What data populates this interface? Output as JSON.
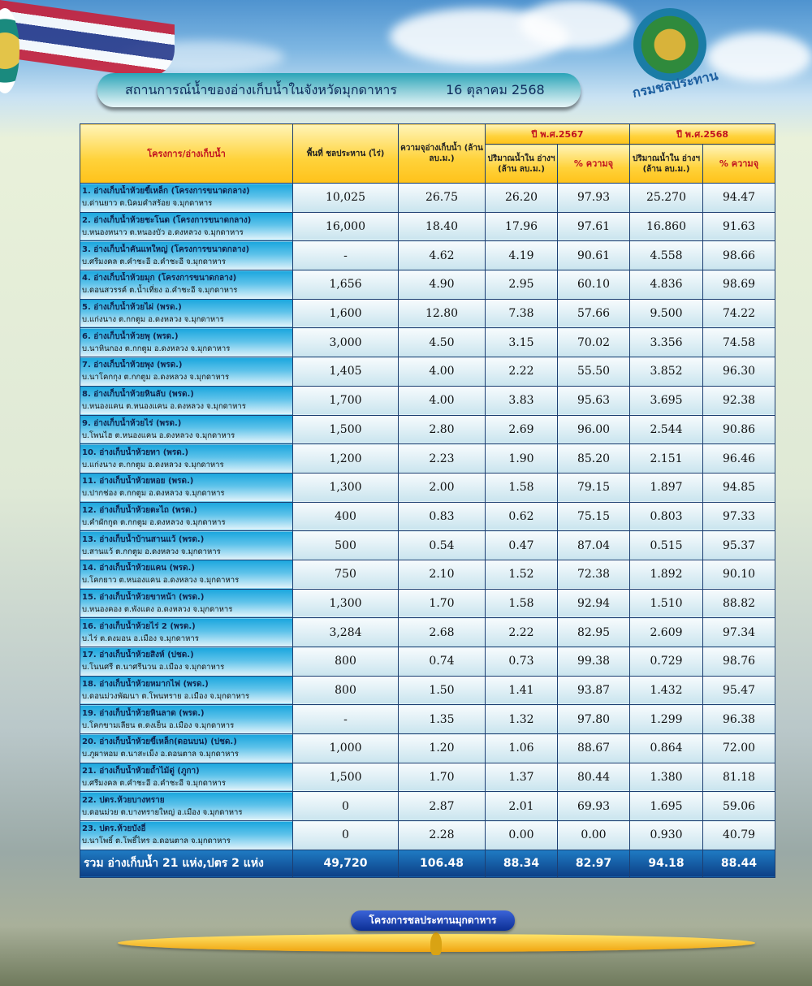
{
  "header": {
    "title": "สถานการณ์น้ำของอ่างเก็บน้ำในจังหวัดมุกดาหาร",
    "date": "16 ตุลาคม 2568",
    "logo_text": "กรมชลประทาน"
  },
  "table": {
    "col_name": "โครงการ/อ่างเก็บน้ำ",
    "col_area": "พื้นที่ ชลประหาน (ไร่)",
    "col_capacity": "ความจุอ่างเก็บน้ำ (ล้าน ลบ.ม.)",
    "year1": "ปี พ.ศ.2567",
    "year2": "ปี พ.ศ.2568",
    "col_volume": "ปริมาณน้ำใน อ่างฯ (ล้าน ลบ.ม.)",
    "col_percent": "% ความจุ",
    "rows": [
      {
        "name": "1. อ่างเก็บน้ำห้วยขี้เหล็ก (โครงการขนาดกลาง)",
        "loc": "บ.ด่านยาว ต.นิคมคำสร้อย จ.มุกดาหาร",
        "area": "10,025",
        "cap": "26.75",
        "v67": "26.20",
        "p67": "97.93",
        "v68": "25.270",
        "p68": "94.47"
      },
      {
        "name": "2. อ่างเก็บน้ำห้วยชะโนด (โครงการขนาดกลาง)",
        "loc": "บ.หนองหนาว ต.หนองบัว อ.ดงหลวง จ.มุกดาหาร",
        "area": "16,000",
        "cap": "18.40",
        "v67": "17.96",
        "p67": "97.61",
        "v68": "16.860",
        "p68": "91.63"
      },
      {
        "name": "3. อ่างเก็บน้ำคันแทใหญ่ (โครงการขนาดกลาง)",
        "loc": "บ.ศรีมงคล ต.คำชะอี อ.คำชะอี จ.มุกดาหาร",
        "area": "-",
        "cap": "4.62",
        "v67": "4.19",
        "p67": "90.61",
        "v68": "4.558",
        "p68": "98.66"
      },
      {
        "name": "4. อ่างเก็บน้ำห้วยมุก (โครงการขนาดกลาง)",
        "loc": "บ.ดอนสวรรค์ ต.น้ำเที่ยง อ.คำชะอี จ.มุกดาหาร",
        "area": "1,656",
        "cap": "4.90",
        "v67": "2.95",
        "p67": "60.10",
        "v68": "4.836",
        "p68": "98.69"
      },
      {
        "name": "5. อ่างเก็บน้ำห้วยไผ่ (พรด.)",
        "loc": "บ.แก่งนาง ต.กกตูม อ.ดงหลวง จ.มุกดาหาร",
        "area": "1,600",
        "cap": "12.80",
        "v67": "7.38",
        "p67": "57.66",
        "v68": "9.500",
        "p68": "74.22"
      },
      {
        "name": "6. อ่างเก็บน้ำห้วยพุ (พรด.)",
        "loc": "บ.นาหินกอง ต.กกตูม อ.ดงหลวง จ.มุกดาหาร",
        "area": "3,000",
        "cap": "4.50",
        "v67": "3.15",
        "p67": "70.02",
        "v68": "3.356",
        "p68": "74.58"
      },
      {
        "name": "7. อ่างเก็บน้ำห้วยพุง (พรด.)",
        "loc": "บ.นาโคกกุง ต.กกตูม อ.ดงหลวง จ.มุกดาหาร",
        "area": "1,405",
        "cap": "4.00",
        "v67": "2.22",
        "p67": "55.50",
        "v68": "3.852",
        "p68": "96.30"
      },
      {
        "name": "8. อ่างเก็บน้ำห้วยหินลับ (พรด.)",
        "loc": "บ.หนองแคน ต.หนองแคน อ.ดงหลวง จ.มุกดาหาร",
        "area": "1,700",
        "cap": "4.00",
        "v67": "3.83",
        "p67": "95.63",
        "v68": "3.695",
        "p68": "92.38"
      },
      {
        "name": "9. อ่างเก็บน้ำห้วยไร่ (พรด.)",
        "loc": "บ.โพนไฮ ต.หนองแคน อ.ดงหลวง จ.มุกดาหาร",
        "area": "1,500",
        "cap": "2.80",
        "v67": "2.69",
        "p67": "96.00",
        "v68": "2.544",
        "p68": "90.86"
      },
      {
        "name": "10. อ่างเก็บน้ำห้วยทา (พรด.)",
        "loc": "บ.แก่งนาง ต.กกตูม อ.ดงหลวง จ.มุกดาหาร",
        "area": "1,200",
        "cap": "2.23",
        "v67": "1.90",
        "p67": "85.20",
        "v68": "2.151",
        "p68": "96.46"
      },
      {
        "name": "11. อ่างเก็บน้ำห้วยหอย (พรด.)",
        "loc": "บ.ปากช่อง ต.กกตูม อ.ดงหลวง จ.มุกดาหาร",
        "area": "1,300",
        "cap": "2.00",
        "v67": "1.58",
        "p67": "79.15",
        "v68": "1.897",
        "p68": "94.85"
      },
      {
        "name": "12. อ่างเก็บน้ำห้วยตะไถ (พรด.)",
        "loc": "บ.คำผักกูด ต.กกตูม อ.ดงหลวง จ.มุกดาหาร",
        "area": "400",
        "cap": "0.83",
        "v67": "0.62",
        "p67": "75.15",
        "v68": "0.803",
        "p68": "97.33"
      },
      {
        "name": "13. อ่างเก็บน้ำบ้านสานแว้ (พรด.)",
        "loc": "บ.สานแว้ ต.กกตูม อ.ดงหลวง จ.มุกดาหาร",
        "area": "500",
        "cap": "0.54",
        "v67": "0.47",
        "p67": "87.04",
        "v68": "0.515",
        "p68": "95.37"
      },
      {
        "name": "14. อ่างเก็บน้ำห้วยแคน (พรด.)",
        "loc": "บ.โคกยาว ต.หนองแคน อ.ดงหลวง จ.มุกดาหาร",
        "area": "750",
        "cap": "2.10",
        "v67": "1.52",
        "p67": "72.38",
        "v68": "1.892",
        "p68": "90.10"
      },
      {
        "name": "15. อ่างเก็บน้ำห้วยขาหน้า (พรด.)",
        "loc": "บ.หนองคอง ต.พังแดง อ.ดงหลวง จ.มุกดาหาร",
        "area": "1,300",
        "cap": "1.70",
        "v67": "1.58",
        "p67": "92.94",
        "v68": "1.510",
        "p68": "88.82"
      },
      {
        "name": "16. อ่างเก็บน้ำห้วยไร่ 2 (พรด.)",
        "loc": "บ.ไร่ ต.ดงมอน อ.เมือง จ.มุกดาหาร",
        "area": "3,284",
        "cap": "2.68",
        "v67": "2.22",
        "p67": "82.95",
        "v68": "2.609",
        "p68": "97.34"
      },
      {
        "name": "17. อ่างเก็บน้ำห้วยสิงห์ (ปชด.)",
        "loc": "บ.โนนศรี ต.นาศรีนวน อ.เมือง จ.มุกดาหาร",
        "area": "800",
        "cap": "0.74",
        "v67": "0.73",
        "p67": "99.38",
        "v68": "0.729",
        "p68": "98.76"
      },
      {
        "name": "18. อ่างเก็บน้ำห้วยหมากไฟ (พรด.)",
        "loc": "บ.ดอนม่วงพัฒนา ต.โพนทราย อ.เมือง จ.มุกดาหาร",
        "area": "800",
        "cap": "1.50",
        "v67": "1.41",
        "p67": "93.87",
        "v68": "1.432",
        "p68": "95.47"
      },
      {
        "name": "19. อ่างเก็บน้ำห้วยหินลาด (พรด.)",
        "loc": "บ.โคกขามเลียน ต.ดงเย็น อ.เมือง จ.มุกดาหาร",
        "area": "-",
        "cap": "1.35",
        "v67": "1.32",
        "p67": "97.80",
        "v68": "1.299",
        "p68": "96.38"
      },
      {
        "name": "20. อ่างเก็บน้ำห้วยขี้เหล็ก(ดอนบน) (ปชด.)",
        "loc": "บ.ภูผาหอม ต.นาสะเม็ง อ.ดอนตาล จ.มุกดาหาร",
        "area": "1,000",
        "cap": "1.20",
        "v67": "1.06",
        "p67": "88.67",
        "v68": "0.864",
        "p68": "72.00"
      },
      {
        "name": "21. อ่างเก็บน้ำห้วยถ้ำไม้ดู่ (ภูกา)",
        "loc": "บ.ศรีมงคล ต.คำชะอี อ.คำชะอี จ.มุกดาหาร",
        "area": "1,500",
        "cap": "1.70",
        "v67": "1.37",
        "p67": "80.44",
        "v68": "1.380",
        "p68": "81.18"
      },
      {
        "name": "22. ปตร.ห้วยบางทราย",
        "loc": "บ.ดอนม่วย ต.บางทรายใหญ่ อ.เมือง จ.มุกดาหาร",
        "area": "0",
        "cap": "2.87",
        "v67": "2.01",
        "p67": "69.93",
        "v68": "1.695",
        "p68": "59.06"
      },
      {
        "name": "23. ปตร.ห้วยบังอี่",
        "loc": "บ.นาโพธิ์ ต.โพธิ์ไทร อ.ดอนตาล จ.มุกดาหาร",
        "area": "0",
        "cap": "2.28",
        "v67": "0.00",
        "p67": "0.00",
        "v68": "0.930",
        "p68": "40.79"
      }
    ],
    "total": {
      "name": "รวม อ่างเก็บน้ำ 21 แห่ง,ปตร 2 แห่ง",
      "area": "49,720",
      "cap": "106.48",
      "v67": "88.34",
      "p67": "82.97",
      "v68": "94.18",
      "p68": "88.44"
    }
  },
  "footer": {
    "label": "โครงการชลประทานมุกดาหาร"
  },
  "colors": {
    "header_yellow": "#ffd23a",
    "header_red_text": "#c1121f",
    "row_blue": "#19a6de",
    "total_blue": "#0c3f86"
  }
}
